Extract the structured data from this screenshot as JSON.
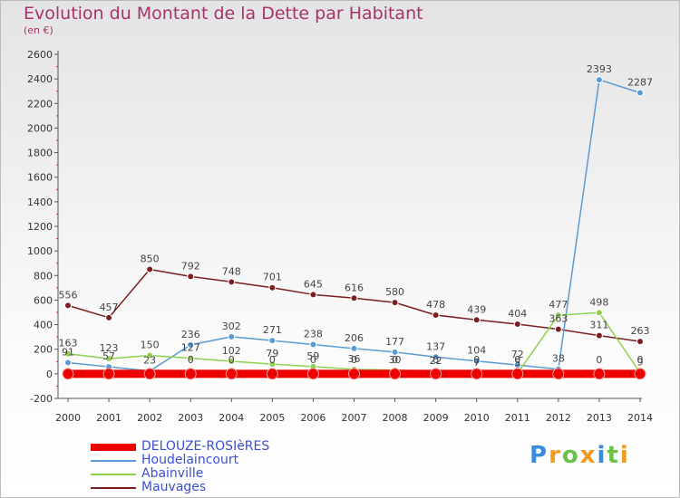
{
  "title": "Evolution du Montant de la Dette par Habitant",
  "subtitle": "(en €)",
  "logo": "Proxiti",
  "chart_data": {
    "type": "line",
    "x": [
      "2000",
      "2001",
      "2002",
      "2003",
      "2004",
      "2005",
      "2006",
      "2007",
      "2008",
      "2009",
      "2010",
      "2011",
      "2012",
      "2013",
      "2014"
    ],
    "ylim": [
      -200,
      2600
    ],
    "yticks": [
      -200,
      0,
      200,
      400,
      600,
      800,
      1000,
      1200,
      1400,
      1600,
      1800,
      2000,
      2200,
      2400,
      2600
    ],
    "grid": false,
    "legend_position": "bottom-left",
    "series": [
      {
        "name": "DELOUZE-ROSIèRES",
        "color": "#ee0000",
        "values": [
          0,
          0,
          0,
          0,
          0,
          0,
          0,
          0,
          0,
          0,
          0,
          0,
          0,
          0,
          0
        ],
        "labels": [
          "",
          "",
          "",
          "",
          "",
          "",
          "",
          "",
          "",
          "",
          "",
          "",
          "",
          "",
          ""
        ]
      },
      {
        "name": "Houdelaincourt",
        "color": "#5a9bd5",
        "values": [
          91,
          57,
          23,
          236,
          302,
          271,
          238,
          206,
          177,
          137,
          104,
          72,
          38,
          2393,
          2287
        ],
        "labels": [
          "91",
          "57",
          "23",
          "236",
          "302",
          "271",
          "238",
          "206",
          "177",
          "137",
          "104",
          "72",
          "38",
          "2393",
          "2287"
        ]
      },
      {
        "name": "Abainville",
        "color": "#8fd14f",
        "values": [
          163,
          123,
          150,
          127,
          102,
          79,
          59,
          36,
          30,
          22,
          7,
          5,
          477,
          498,
          9
        ],
        "labels": [
          "163",
          "123",
          "150",
          "127",
          "102",
          "79",
          "59",
          "36",
          "30",
          "22",
          "7",
          "5",
          "477",
          "498",
          "9"
        ]
      },
      {
        "name": "Mauvages",
        "color": "#7a1f1f",
        "values": [
          556,
          457,
          850,
          792,
          748,
          701,
          645,
          616,
          580,
          478,
          439,
          404,
          363,
          311,
          263
        ],
        "labels": [
          "556",
          "457",
          "850",
          "792",
          "748",
          "701",
          "645",
          "616",
          "580",
          "478",
          "439",
          "404",
          "363",
          "311",
          "263"
        ]
      }
    ],
    "extra_labels": [
      {
        "text": "0",
        "xi": 3,
        "y": 0
      },
      {
        "text": "0",
        "xi": 4,
        "y": 0
      },
      {
        "text": "0",
        "xi": 5,
        "y": 0
      },
      {
        "text": "0",
        "xi": 6,
        "y": 0
      },
      {
        "text": "0",
        "xi": 7,
        "y": 0
      },
      {
        "text": "0",
        "xi": 8,
        "y": 0
      },
      {
        "text": "0",
        "xi": 9,
        "y": 0
      },
      {
        "text": "0",
        "xi": 10,
        "y": 0
      },
      {
        "text": "0",
        "xi": 11,
        "y": 0
      },
      {
        "text": "0",
        "xi": 13,
        "y": 0
      },
      {
        "text": "0",
        "xi": 14,
        "y": 0
      }
    ]
  }
}
